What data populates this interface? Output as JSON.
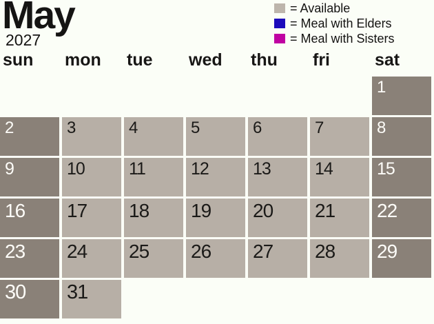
{
  "title": {
    "month": "May",
    "year": "2027"
  },
  "legend": {
    "items": [
      {
        "name": "available",
        "swatch_color": "#BDB5AC",
        "label": "= Available"
      },
      {
        "name": "meal-with-elders",
        "swatch_color": "#1C0ABB",
        "label": "= Meal with Elders"
      },
      {
        "name": "meal-with-sisters",
        "swatch_color": "#C002A2",
        "label": "= Meal with Sisters"
      }
    ]
  },
  "calendar": {
    "day_headers": [
      "sun",
      "mon",
      "tue",
      "wed",
      "thu",
      "fri",
      "sat"
    ],
    "colors": {
      "background": "#FBFEF7",
      "weekday_cell": "#B7AFA6",
      "weekend_cell": "#8A8178",
      "weekday_text": "#1B1A18",
      "weekend_text": "#FDFCF8"
    },
    "weeks": [
      [
        {
          "day": "",
          "type": "empty"
        },
        {
          "day": "",
          "type": "empty"
        },
        {
          "day": "",
          "type": "empty"
        },
        {
          "day": "",
          "type": "empty"
        },
        {
          "day": "",
          "type": "empty"
        },
        {
          "day": "",
          "type": "empty"
        },
        {
          "day": "1",
          "type": "weekend"
        }
      ],
      [
        {
          "day": "2",
          "type": "weekend"
        },
        {
          "day": "3",
          "type": "weekday"
        },
        {
          "day": "4",
          "type": "weekday"
        },
        {
          "day": "5",
          "type": "weekday"
        },
        {
          "day": "6",
          "type": "weekday"
        },
        {
          "day": "7",
          "type": "weekday"
        },
        {
          "day": "8",
          "type": "weekend"
        }
      ],
      [
        {
          "day": "9",
          "type": "weekend"
        },
        {
          "day": "10",
          "type": "weekday"
        },
        {
          "day": "11",
          "type": "weekday"
        },
        {
          "day": "12",
          "type": "weekday"
        },
        {
          "day": "13",
          "type": "weekday"
        },
        {
          "day": "14",
          "type": "weekday"
        },
        {
          "day": "15",
          "type": "weekend"
        }
      ],
      [
        {
          "day": "16",
          "type": "weekend"
        },
        {
          "day": "17",
          "type": "weekday"
        },
        {
          "day": "18",
          "type": "weekday"
        },
        {
          "day": "19",
          "type": "weekday"
        },
        {
          "day": "20",
          "type": "weekday"
        },
        {
          "day": "21",
          "type": "weekday"
        },
        {
          "day": "22",
          "type": "weekend"
        }
      ],
      [
        {
          "day": "23",
          "type": "weekend"
        },
        {
          "day": "24",
          "type": "weekday"
        },
        {
          "day": "25",
          "type": "weekday"
        },
        {
          "day": "26",
          "type": "weekday"
        },
        {
          "day": "27",
          "type": "weekday"
        },
        {
          "day": "28",
          "type": "weekday"
        },
        {
          "day": "29",
          "type": "weekend"
        }
      ],
      [
        {
          "day": "30",
          "type": "weekend"
        },
        {
          "day": "31",
          "type": "weekday"
        },
        {
          "day": "",
          "type": "empty"
        },
        {
          "day": "",
          "type": "empty"
        },
        {
          "day": "",
          "type": "empty"
        },
        {
          "day": "",
          "type": "empty"
        },
        {
          "day": "",
          "type": "empty"
        }
      ]
    ]
  }
}
